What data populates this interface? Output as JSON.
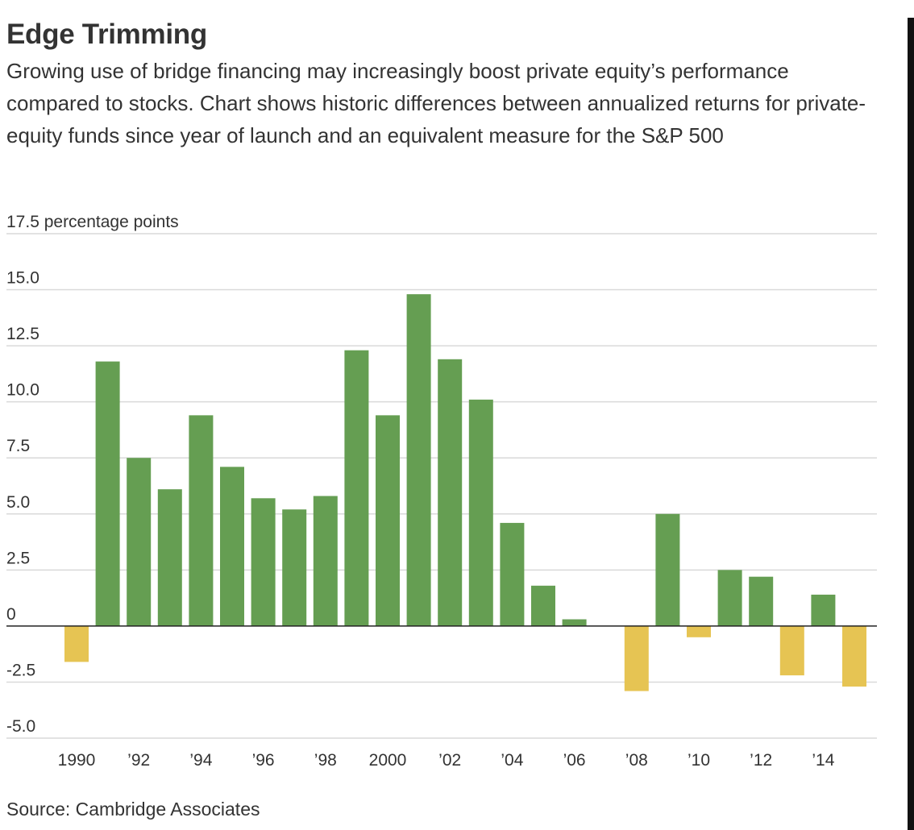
{
  "header": {
    "title": "Edge Trimming",
    "subtitle": "Growing use of bridge financing may increasingly boost private equity’s performance compared to stocks. Chart shows historic differences between annualized returns for private-equity funds since year of launch and an equivalent measure for the S&P 500"
  },
  "footer": {
    "source": "Source: Cambridge Associates"
  },
  "colors": {
    "positive": "#659e52",
    "negative": "#e6c453",
    "grid": "#d9d9d9",
    "zero_line": "#222222",
    "text": "#333333"
  },
  "chart_data": {
    "type": "bar",
    "title": "Edge Trimming",
    "subtitle": "Growing use of bridge financing may increasingly boost private equity’s performance compared to stocks. Chart shows historic differences between annualized returns for private-equity funds since year of launch and an equivalent measure for the S&P 500",
    "ylabel": "percentage points",
    "ylim": [
      -5,
      17.5
    ],
    "yticks": [
      -5,
      -2.5,
      0,
      2.5,
      5,
      7.5,
      10,
      12.5,
      15,
      17.5
    ],
    "ytick_labels": [
      "-5.0",
      "-2.5",
      "0",
      "2.5",
      "5.0",
      "7.5",
      "10.0",
      "12.5",
      "15.0",
      "17.5 percentage points"
    ],
    "categories": [
      1990,
      1991,
      1992,
      1993,
      1994,
      1995,
      1996,
      1997,
      1998,
      1999,
      2000,
      2001,
      2002,
      2003,
      2004,
      2005,
      2006,
      2007,
      2008,
      2009,
      2010,
      2011,
      2012,
      2013,
      2014,
      2015
    ],
    "values": [
      -1.6,
      11.8,
      7.5,
      6.1,
      9.4,
      7.1,
      5.7,
      5.2,
      5.8,
      12.3,
      9.4,
      14.8,
      11.9,
      10.1,
      4.6,
      1.8,
      0.3,
      0.0,
      -2.9,
      5.0,
      -0.5,
      2.5,
      2.2,
      -2.2,
      1.4,
      -2.7
    ],
    "xtick_labels": [
      {
        "year": 1990,
        "label": "1990"
      },
      {
        "year": 1992,
        "label": "’92"
      },
      {
        "year": 1994,
        "label": "’94"
      },
      {
        "year": 1996,
        "label": "’96"
      },
      {
        "year": 1998,
        "label": "’98"
      },
      {
        "year": 2000,
        "label": "2000"
      },
      {
        "year": 2002,
        "label": "’02"
      },
      {
        "year": 2004,
        "label": "’04"
      },
      {
        "year": 2006,
        "label": "’06"
      },
      {
        "year": 2008,
        "label": "’08"
      },
      {
        "year": 2010,
        "label": "’10"
      },
      {
        "year": 2012,
        "label": "’12"
      },
      {
        "year": 2014,
        "label": "’14"
      }
    ],
    "grid": true,
    "legend": "none"
  }
}
